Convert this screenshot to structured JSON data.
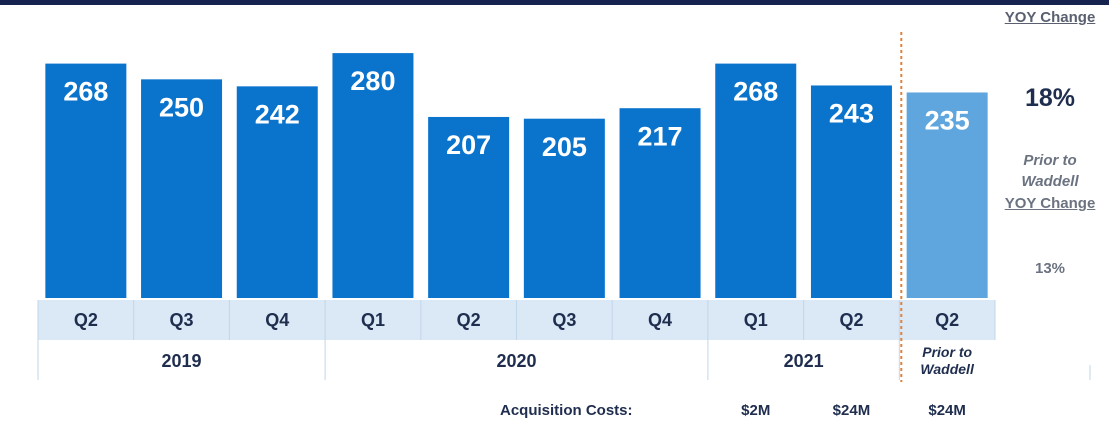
{
  "chart_data": {
    "type": "bar",
    "groups": [
      {
        "name": "2019",
        "categories": [
          "Q2",
          "Q3",
          "Q4"
        ],
        "values": [
          268,
          250,
          242
        ],
        "color": "#0a73cc"
      },
      {
        "name": "2020",
        "categories": [
          "Q1",
          "Q2",
          "Q3",
          "Q4"
        ],
        "values": [
          280,
          207,
          205,
          217
        ],
        "color": "#0a73cc"
      },
      {
        "name": "2021",
        "categories": [
          "Q1",
          "Q2"
        ],
        "values": [
          268,
          243
        ],
        "color": "#0a73cc"
      },
      {
        "name": "Prior to Waddell",
        "categories": [
          "Q2"
        ],
        "values": [
          235
        ],
        "color": "#5ea6dd"
      }
    ],
    "ylim": [
      0,
      335
    ],
    "annotations": {
      "yoy_label": "YOY Change",
      "yoy_value": "18%",
      "prior_label": "Prior to Waddell",
      "prior_yoy_label": "YOY Change",
      "prior_yoy_value": "13%"
    },
    "acquisition_costs": {
      "label": "Acquisition Costs:",
      "values": [
        "$2M",
        "$24M",
        "$24M"
      ]
    }
  }
}
